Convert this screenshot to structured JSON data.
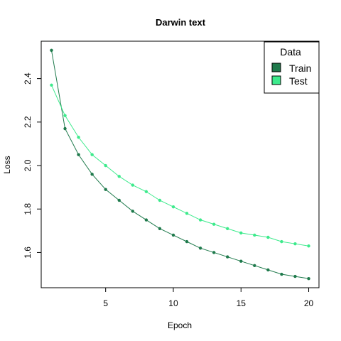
{
  "chart_data": {
    "type": "line",
    "title": "Darwin text",
    "xlabel": "Epoch",
    "ylabel": "Loss",
    "x": [
      1,
      2,
      3,
      4,
      5,
      6,
      7,
      8,
      9,
      10,
      11,
      12,
      13,
      14,
      15,
      16,
      17,
      18,
      19,
      20
    ],
    "xlim": [
      1,
      20
    ],
    "ylim": [
      1.48,
      2.53
    ],
    "x_ticks": [
      5,
      10,
      15,
      20
    ],
    "y_ticks": [
      1.6,
      1.8,
      2.0,
      2.2,
      2.4
    ],
    "x_tick_labels": [
      "5",
      "10",
      "15",
      "20"
    ],
    "y_tick_labels": [
      "1.6",
      "1.8",
      "2.0",
      "2.2",
      "2.4"
    ],
    "grid": false,
    "legend": {
      "title": "Data",
      "position": "top-right"
    },
    "series": [
      {
        "name": "Train",
        "color": "#1f7a4c",
        "values": [
          2.53,
          2.17,
          2.05,
          1.96,
          1.89,
          1.84,
          1.79,
          1.75,
          1.71,
          1.68,
          1.65,
          1.62,
          1.6,
          1.58,
          1.56,
          1.54,
          1.52,
          1.5,
          1.49,
          1.48
        ]
      },
      {
        "name": "Test",
        "color": "#3dea8c",
        "values": [
          2.37,
          2.23,
          2.13,
          2.05,
          2.0,
          1.95,
          1.91,
          1.88,
          1.84,
          1.81,
          1.78,
          1.75,
          1.73,
          1.71,
          1.69,
          1.68,
          1.67,
          1.65,
          1.64,
          1.63
        ]
      }
    ]
  }
}
